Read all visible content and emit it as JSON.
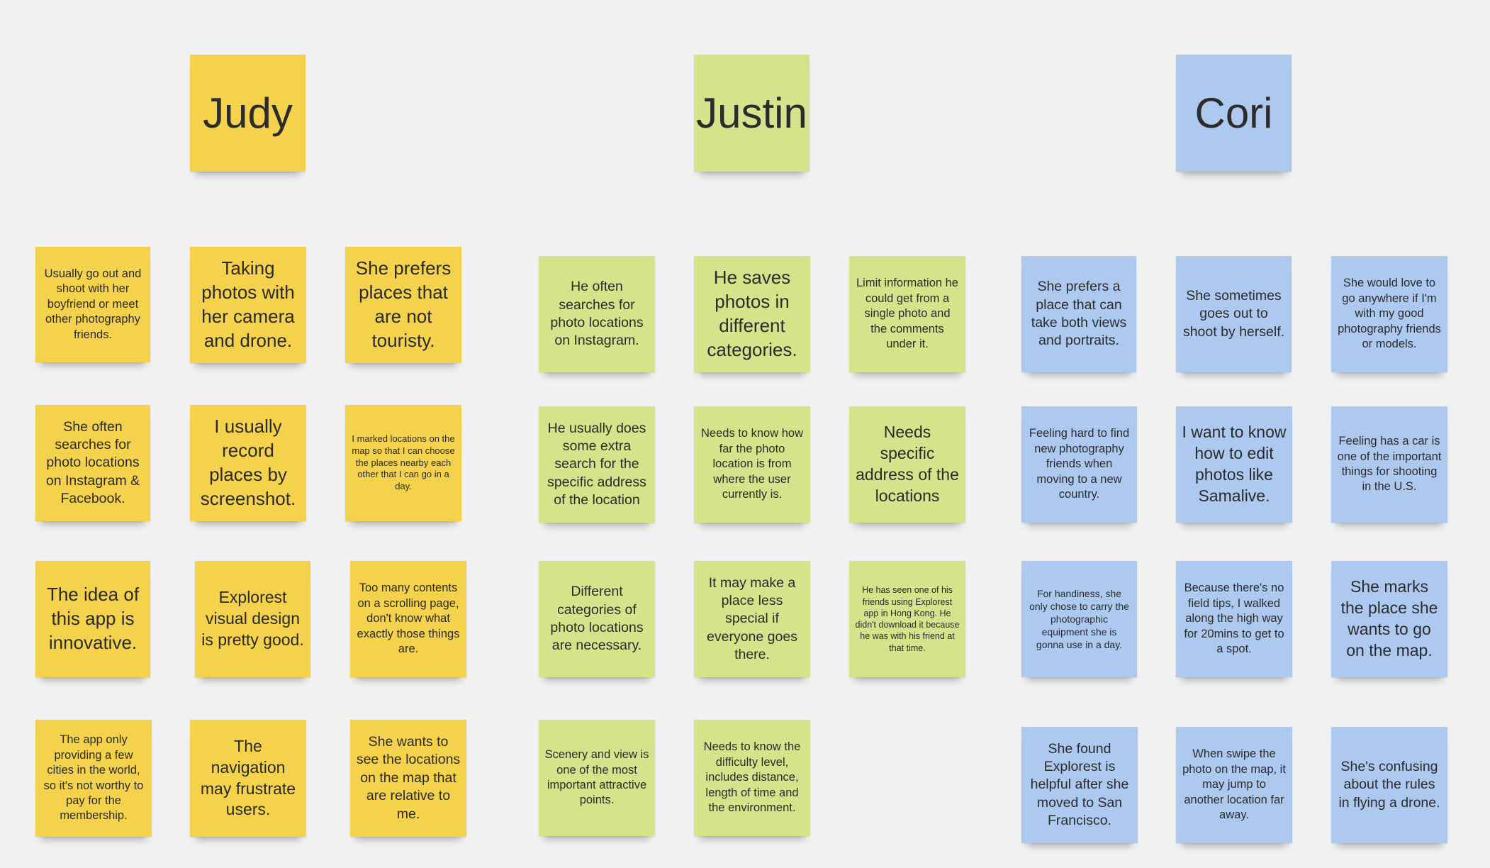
{
  "colors": {
    "background": "#f1f1f1",
    "judy": "#f5d24b",
    "justin": "#d6e38a",
    "cori": "#aec9f0"
  },
  "headers": {
    "judy": "Judy",
    "justin": "Justin",
    "cori": "Cori"
  },
  "judy": {
    "r1c1": "Usually go out and shoot with her boyfriend or meet other photography friends.",
    "r1c2": "Taking photos with her camera and drone.",
    "r1c3": "She prefers places that are not touristy.",
    "r2c1": "She often searches for photo locations on Instagram & Facebook.",
    "r2c2": "I usually record places by screenshot.",
    "r2c3": "I marked locations on the map so that I can choose the places nearby each other that I can go in a day.",
    "r3c1": "The idea of this app is innovative.",
    "r3c2": "Explorest visual design is pretty good.",
    "r3c3": "Too many contents on a scrolling page, don't know what exactly those things are.",
    "r4c1": "The app only providing a few cities in the world, so it's not worthy to pay for the membership.",
    "r4c2": "The navigation may frustrate users.",
    "r4c3": "She wants to see the locations on the map that are relative to me."
  },
  "justin": {
    "r1c1": "He often searches for photo locations on Instagram.",
    "r1c2": "He saves photos in different categories.",
    "r1c3": "Limit information he could get from a single photo and the comments under it.",
    "r2c1": "He usually does some extra search for the specific address of the location",
    "r2c2": "Needs to know how far the photo location is from where the user currently is.",
    "r2c3": "Needs specific address of the locations",
    "r3c1": "Different categories of photo locations are necessary.",
    "r3c2": "It may make a place less special if everyone goes there.",
    "r3c3": "He has seen one of his friends using Explorest app in Hong Kong. He didn't download it because he was with his friend at that time.",
    "r4c1": "Scenery and view is one of the most important attractive points.",
    "r4c2": "Needs to know the difficulty level, includes distance, length of time and the environment."
  },
  "cori": {
    "r1c1": "She prefers a place that can take both views and portraits.",
    "r1c2": "She sometimes goes out to shoot by herself.",
    "r1c3": "She would love to go anywhere if I'm with my good photography friends or models.",
    "r2c1": "Feeling hard to find new photography friends when moving to a new country.",
    "r2c2": "I want to know how to edit photos like Samalive.",
    "r2c3": "Feeling has a car is one of the important things for shooting in the U.S.",
    "r3c1": "For handiness, she only chose to carry the photographic equipment she is gonna use in a day.",
    "r3c2": "Because there's no field tips, I walked along the high way for 20mins to get to a spot.",
    "r3c3": "She marks the place she wants to go on the map.",
    "r4c1": "She found Explorest is helpful after she moved to San Francisco.",
    "r4c2": "When swipe the photo on the map, it may jump to another location far away.",
    "r4c3": "She's confusing about the rules in flying a drone."
  }
}
